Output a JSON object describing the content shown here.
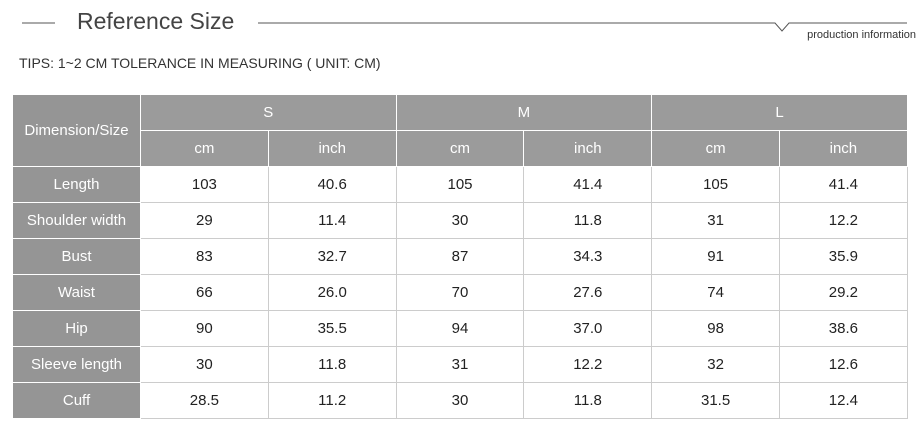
{
  "header": {
    "title": "Reference Size",
    "subtitle": "production information"
  },
  "tips": "TIPS: 1~2 CM TOLERANCE IN MEASURING ( UNIT: CM)",
  "table": {
    "corner": "Dimension/Size",
    "groups": [
      "S",
      "M",
      "L"
    ],
    "units": [
      "cm",
      "inch",
      "cm",
      "inch",
      "cm",
      "inch"
    ],
    "rows": [
      [
        "Length",
        "103",
        "40.6",
        "105",
        "41.4",
        "105",
        "41.4"
      ],
      [
        "Shoulder width",
        "29",
        "11.4",
        "30",
        "11.8",
        "31",
        "12.2"
      ],
      [
        "Bust",
        "83",
        "32.7",
        "87",
        "34.3",
        "91",
        "35.9"
      ],
      [
        "Waist",
        "66",
        "26.0",
        "70",
        "27.6",
        "74",
        "29.2"
      ],
      [
        "Hip",
        "90",
        "35.5",
        "94",
        "37.0",
        "98",
        "38.6"
      ],
      [
        "Sleeve length",
        "30",
        "11.8",
        "31",
        "12.2",
        "32",
        "12.6"
      ],
      [
        "Cuff",
        "28.5",
        "11.2",
        "30",
        "11.8",
        "31.5",
        "12.4"
      ]
    ]
  }
}
